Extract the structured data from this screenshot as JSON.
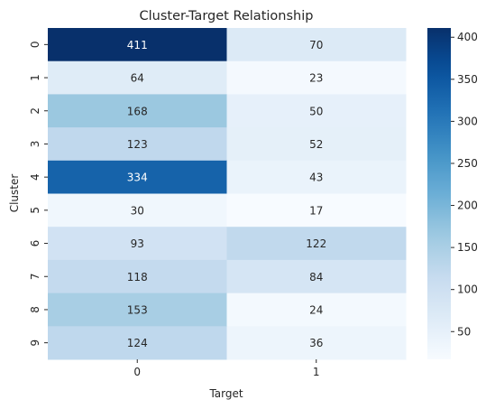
{
  "chart_data": {
    "type": "heatmap",
    "title": "Cluster-Target Relationship",
    "xlabel": "Target",
    "ylabel": "Cluster",
    "x_categories": [
      "0",
      "1"
    ],
    "y_categories": [
      "0",
      "1",
      "2",
      "3",
      "4",
      "5",
      "6",
      "7",
      "8",
      "9"
    ],
    "values": [
      [
        411,
        70
      ],
      [
        64,
        23
      ],
      [
        168,
        50
      ],
      [
        123,
        52
      ],
      [
        334,
        43
      ],
      [
        30,
        17
      ],
      [
        93,
        122
      ],
      [
        118,
        84
      ],
      [
        153,
        24
      ],
      [
        124,
        36
      ]
    ],
    "colorbar": {
      "min": 17,
      "max": 411,
      "ticks": [
        50,
        100,
        150,
        200,
        250,
        300,
        350,
        400
      ],
      "colormap": "Blues"
    },
    "annotation_colors": {
      "light_cell": "#262626",
      "dark_cell": "#ffffff"
    }
  }
}
